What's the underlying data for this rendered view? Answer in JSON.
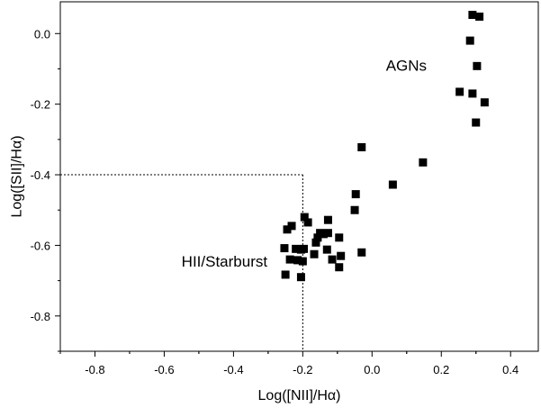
{
  "chart_data": {
    "type": "scatter",
    "xlabel": "Log([NII]/Hα)",
    "ylabel": "Log([SII]/Hα)",
    "xlim": [
      -0.9,
      0.48
    ],
    "ylim": [
      -0.9,
      0.09
    ],
    "x_ticks": [
      -0.8,
      -0.6,
      -0.4,
      -0.2,
      0.0,
      0.2,
      0.4
    ],
    "x_tick_labels": [
      "-0.8",
      "-0.6",
      "-0.4",
      "-0.2",
      "0.0",
      "0.2",
      "0.4"
    ],
    "y_ticks": [
      0.0,
      -0.2,
      -0.4,
      -0.6,
      -0.8
    ],
    "y_tick_labels": [
      "0.0",
      "-0.2",
      "-0.4",
      "-0.6",
      "-0.8"
    ],
    "annotations": [
      {
        "text": "AGNs",
        "x": 0.04,
        "y": -0.105
      },
      {
        "text": "HII/Starburst",
        "x": -0.55,
        "y": -0.66
      }
    ],
    "divider": {
      "x": -0.2,
      "y": -0.4
    },
    "marker_color": "#000000",
    "points": [
      {
        "x": 0.29,
        "y": 0.053
      },
      {
        "x": 0.31,
        "y": 0.048
      },
      {
        "x": 0.283,
        "y": -0.02
      },
      {
        "x": 0.303,
        "y": -0.092
      },
      {
        "x": 0.253,
        "y": -0.165
      },
      {
        "x": 0.29,
        "y": -0.17
      },
      {
        "x": 0.325,
        "y": -0.195
      },
      {
        "x": 0.3,
        "y": -0.252
      },
      {
        "x": -0.03,
        "y": -0.322
      },
      {
        "x": 0.147,
        "y": -0.365
      },
      {
        "x": 0.06,
        "y": -0.428
      },
      {
        "x": -0.047,
        "y": -0.455
      },
      {
        "x": -0.05,
        "y": -0.5
      },
      {
        "x": -0.195,
        "y": -0.52
      },
      {
        "x": -0.185,
        "y": -0.535
      },
      {
        "x": -0.127,
        "y": -0.528
      },
      {
        "x": -0.232,
        "y": -0.545
      },
      {
        "x": -0.245,
        "y": -0.555
      },
      {
        "x": -0.15,
        "y": -0.565
      },
      {
        "x": -0.14,
        "y": -0.568
      },
      {
        "x": -0.127,
        "y": -0.565
      },
      {
        "x": -0.157,
        "y": -0.578
      },
      {
        "x": -0.095,
        "y": -0.578
      },
      {
        "x": -0.162,
        "y": -0.592
      },
      {
        "x": -0.253,
        "y": -0.608
      },
      {
        "x": -0.22,
        "y": -0.61
      },
      {
        "x": -0.205,
        "y": -0.612
      },
      {
        "x": -0.197,
        "y": -0.61
      },
      {
        "x": -0.13,
        "y": -0.612
      },
      {
        "x": -0.03,
        "y": -0.62
      },
      {
        "x": -0.167,
        "y": -0.625
      },
      {
        "x": -0.09,
        "y": -0.63
      },
      {
        "x": -0.237,
        "y": -0.64
      },
      {
        "x": -0.215,
        "y": -0.642
      },
      {
        "x": -0.2,
        "y": -0.645
      },
      {
        "x": -0.115,
        "y": -0.64
      },
      {
        "x": -0.095,
        "y": -0.662
      },
      {
        "x": -0.25,
        "y": -0.683
      },
      {
        "x": -0.205,
        "y": -0.69
      }
    ]
  }
}
